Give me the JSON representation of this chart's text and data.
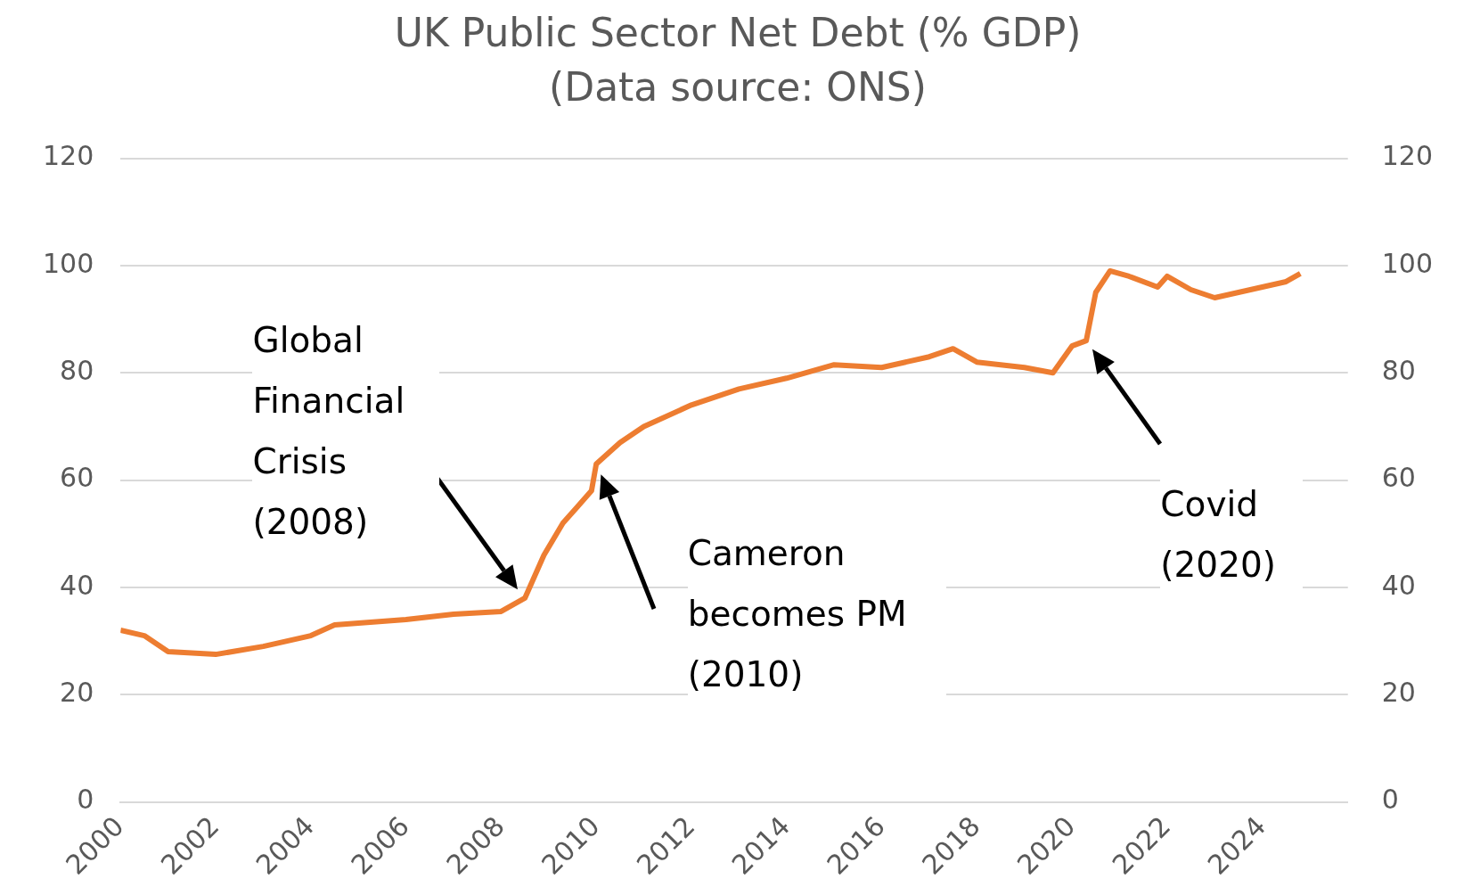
{
  "chart_data": {
    "type": "line",
    "title": "UK Public Sector Net Debt (% GDP)",
    "subtitle": "(Data source: ONS)",
    "x": [
      2000,
      2000.5,
      2001,
      2002,
      2003,
      2004,
      2004.5,
      2006,
      2007,
      2008,
      2008.5,
      2008.9,
      2009.3,
      2009.6,
      2009.9,
      2010,
      2010.5,
      2011,
      2012,
      2013,
      2014,
      2015,
      2016,
      2017,
      2017.5,
      2018,
      2019,
      2019.6,
      2020,
      2020.3,
      2020.5,
      2020.8,
      2021.2,
      2021.8,
      2022,
      2022.5,
      2023,
      2023.5,
      2024,
      2024.5,
      2024.8
    ],
    "series": [
      {
        "color": "#ed7d31",
        "values": [
          32,
          31,
          28,
          27.5,
          29,
          31,
          33,
          34,
          35,
          35.5,
          38,
          46,
          52,
          55,
          58,
          63,
          67,
          70,
          74,
          77,
          79,
          81.5,
          81,
          83,
          84.5,
          82,
          81,
          80,
          85,
          86,
          95,
          99,
          98,
          96,
          98,
          95.5,
          94,
          95,
          96,
          97,
          98.5
        ]
      }
    ],
    "xlim": [
      2000,
      2025.8
    ],
    "xticks": [
      2000,
      2002,
      2004,
      2006,
      2008,
      2010,
      2012,
      2014,
      2016,
      2018,
      2020,
      2022,
      2024
    ],
    "ylim": [
      0,
      120
    ],
    "yticks": [
      0,
      20,
      40,
      60,
      80,
      100,
      120
    ],
    "y2lim": [
      0,
      120
    ],
    "y2ticks": [
      0,
      20,
      40,
      60,
      80,
      100,
      120
    ],
    "grid": "y",
    "legend": false,
    "marker": "none",
    "line_style": "solid",
    "annotations": [
      "Global Financial Crisis (2008)",
      "Cameron becomes PM (2010)",
      "Covid (2020)"
    ]
  }
}
